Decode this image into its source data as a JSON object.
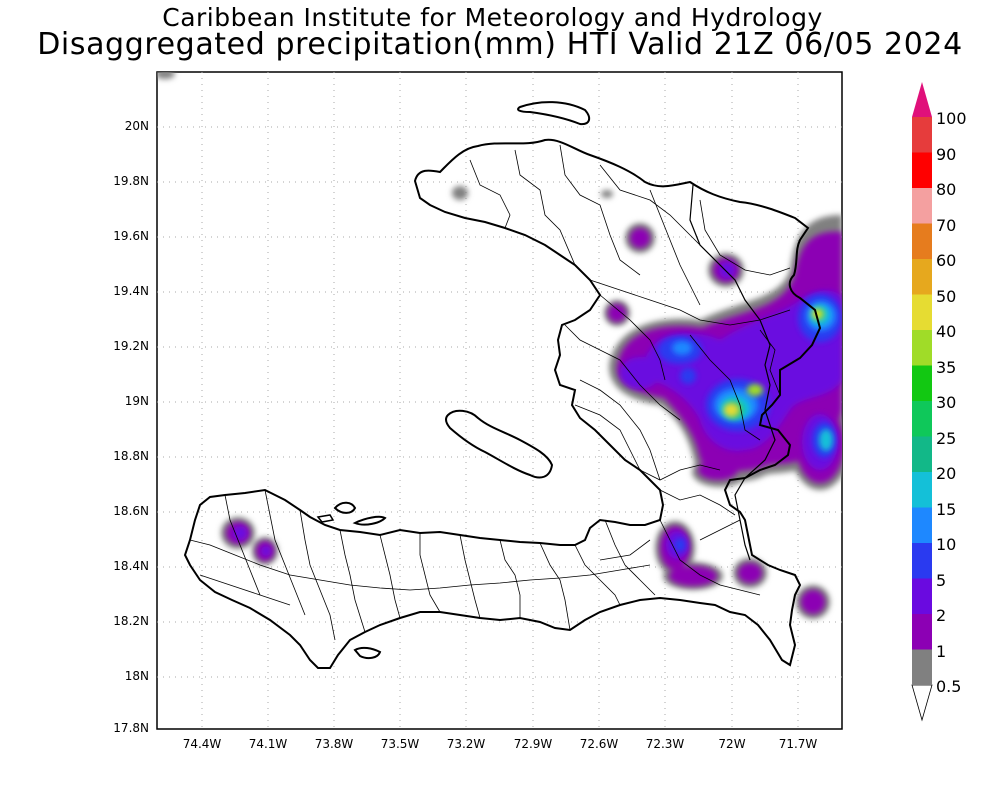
{
  "titles": {
    "line1": "Caribbean Institute for Meteorology and Hydrology",
    "line2": "Disaggregated precipitation(mm) HTI Valid 21Z 06/05 2024"
  },
  "axes": {
    "lat_ticks": [
      "20N",
      "19.8N",
      "19.6N",
      "19.4N",
      "19.2N",
      "19N",
      "18.8N",
      "18.6N",
      "18.4N",
      "18.2N",
      "18N",
      "17.8N"
    ],
    "lon_ticks": [
      "74.4W",
      "74.1W",
      "73.8W",
      "73.5W",
      "73.2W",
      "72.9W",
      "72.6W",
      "72.3W",
      "72W",
      "71.7W"
    ]
  },
  "colorbar": {
    "levels": [
      "0.5",
      "1",
      "2",
      "5",
      "10",
      "15",
      "20",
      "25",
      "30",
      "35",
      "40",
      "50",
      "60",
      "70",
      "80",
      "90",
      "100"
    ],
    "colors": [
      "#808080",
      "#8c00b4",
      "#6a0ae0",
      "#2a3af0",
      "#1e88ff",
      "#14c0d8",
      "#12b888",
      "#0fc85a",
      "#12c812",
      "#a0dc28",
      "#e6dc32",
      "#e6a81e",
      "#e67c1e",
      "#f4a0a0",
      "#ff0000",
      "#e63c3c",
      "#e0107a"
    ]
  },
  "chart_data": {
    "type": "heatmap",
    "title": "Disaggregated precipitation(mm) HTI Valid 21Z 06/05 2024",
    "subtitle": "Caribbean Institute for Meteorology and Hydrology",
    "units": "mm",
    "lat_range": [
      17.8,
      20.2
    ],
    "lon_range": [
      -74.55,
      -71.55
    ],
    "grid": true,
    "precip_cells": [
      {
        "lon": -72.42,
        "lat": 19.59,
        "max_mm": 5
      },
      {
        "lon": -72.03,
        "lat": 19.47,
        "max_mm": 5
      },
      {
        "lon": -72.48,
        "lat": 19.32,
        "max_mm": 5
      },
      {
        "lon": -72.55,
        "lat": 19.05,
        "max_mm": 10
      },
      {
        "lon": -72.25,
        "lat": 19.18,
        "max_mm": 25
      },
      {
        "lon": -71.98,
        "lat": 18.97,
        "max_mm": 40
      },
      {
        "lon": -71.65,
        "lat": 19.32,
        "max_mm": 40
      },
      {
        "lon": -71.7,
        "lat": 19.58,
        "max_mm": 5
      },
      {
        "lon": -71.65,
        "lat": 18.85,
        "max_mm": 20
      },
      {
        "lon": -71.95,
        "lat": 18.72,
        "max_mm": 5
      },
      {
        "lon": -72.28,
        "lat": 18.46,
        "max_mm": 10
      },
      {
        "lon": -72.22,
        "lat": 18.35,
        "max_mm": 2
      },
      {
        "lon": -71.88,
        "lat": 18.37,
        "max_mm": 5
      },
      {
        "lon": -71.62,
        "lat": 18.27,
        "max_mm": 5
      },
      {
        "lon": -74.23,
        "lat": 18.52,
        "max_mm": 5
      },
      {
        "lon": -74.12,
        "lat": 18.44,
        "max_mm": 5
      },
      {
        "lon": -73.22,
        "lat": 19.73,
        "max_mm": 0.5
      },
      {
        "lon": -72.52,
        "lat": 19.75,
        "max_mm": 0.5
      }
    ]
  }
}
